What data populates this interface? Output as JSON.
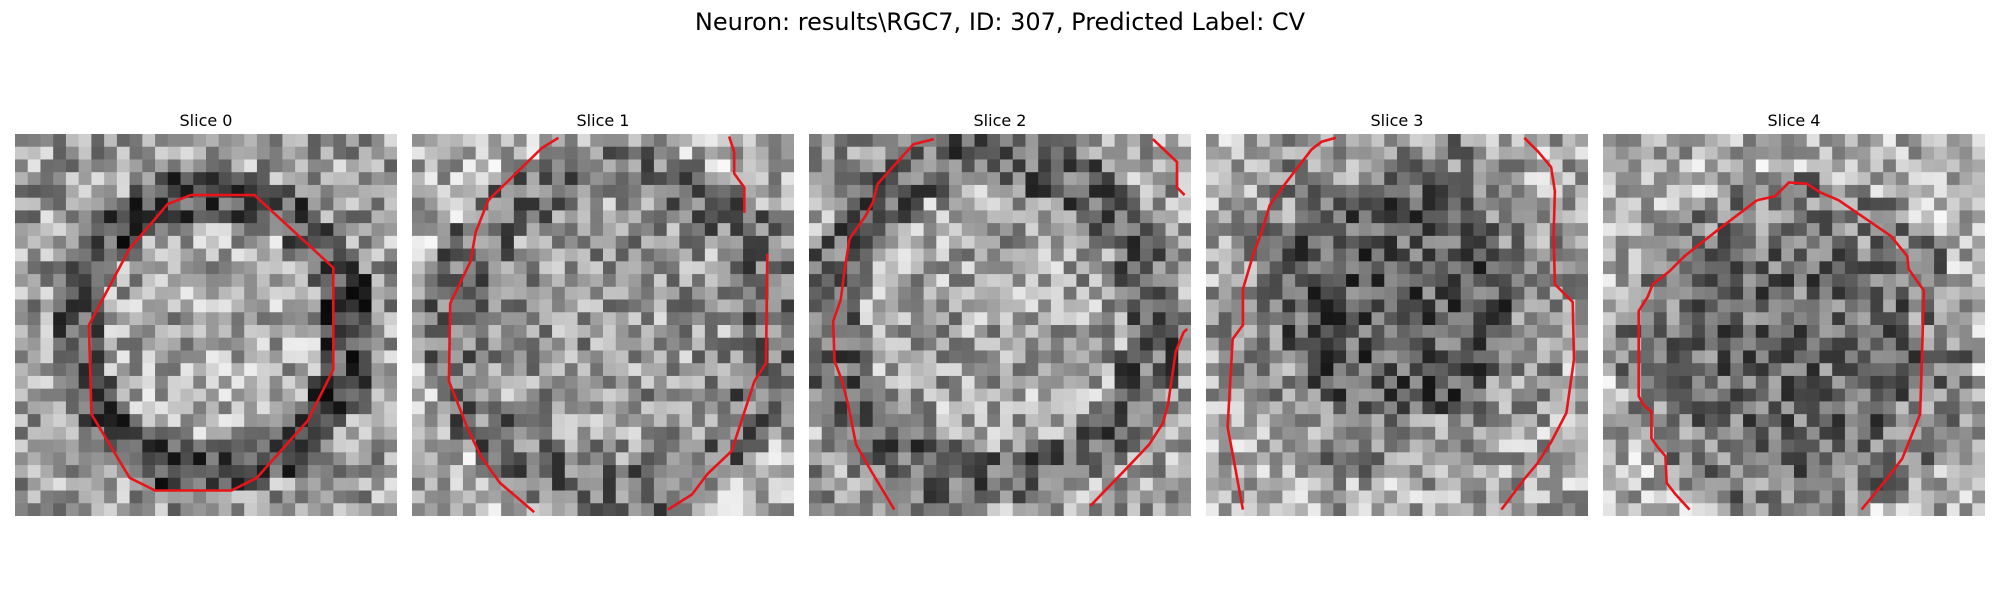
{
  "figure": {
    "suptitle": "Neuron: results\\RGC7, ID: 307, Predicted Label: CV"
  },
  "panels": [
    {
      "title": "Slice 0"
    },
    {
      "title": "Slice 1"
    },
    {
      "title": "Slice 2"
    },
    {
      "title": "Slice 3"
    },
    {
      "title": "Slice 4"
    }
  ],
  "colors": {
    "contour": "#e8141a",
    "background": "#ffffff"
  },
  "colormap": "gray"
}
